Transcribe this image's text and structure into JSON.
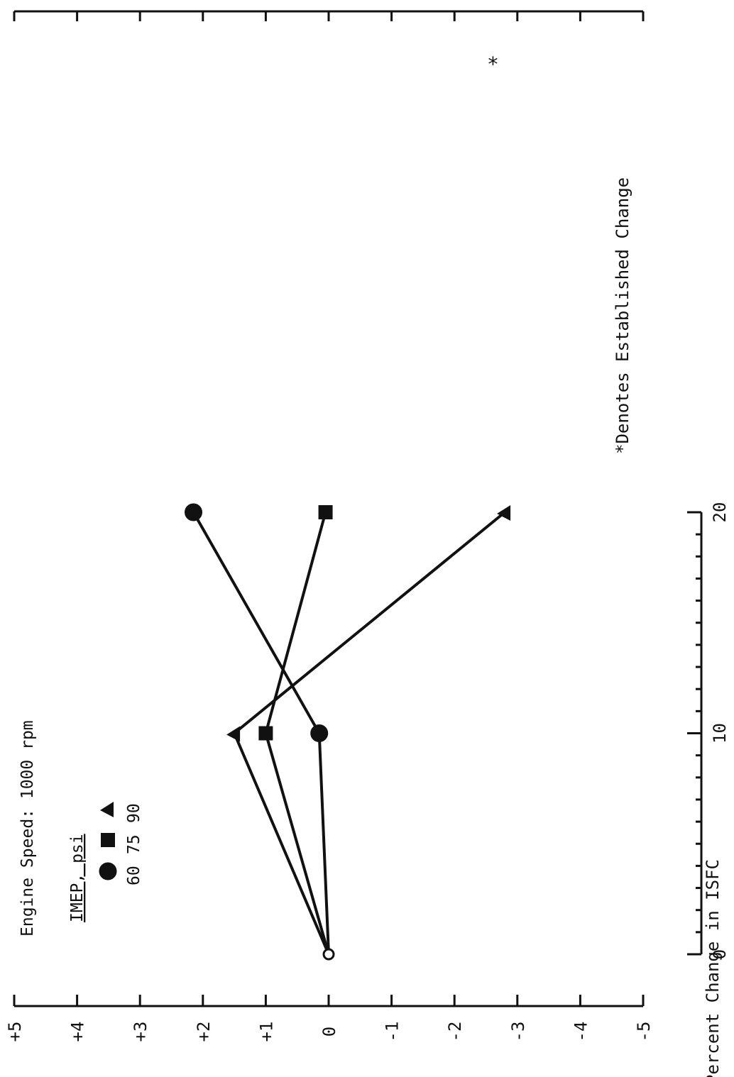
{
  "chart_data": {
    "type": "line",
    "ylabel": "Percent Change in ISFC",
    "y_tick_labels": [
      "+5",
      "+4",
      "+3",
      "+2",
      "+1",
      "0",
      "-1",
      "-2",
      "-3",
      "-4",
      "-5"
    ],
    "ylim": [
      -5,
      5
    ],
    "x_tick_labels": [
      "0",
      "10",
      "20"
    ],
    "xlim": [
      0,
      20
    ],
    "annotations": {
      "title": "Engine Speed: 1000 rpm",
      "legend_title": "IMEP, psi",
      "footnote": "*Denotes Established Change",
      "established_mark": "*"
    },
    "legend_placement": "top-left",
    "grid": false,
    "series": [
      {
        "name": "60",
        "marker": "circle",
        "x": [
          0,
          10,
          20
        ],
        "y": [
          0,
          0.15,
          2.15
        ]
      },
      {
        "name": "75",
        "marker": "square",
        "x": [
          0,
          10,
          20
        ],
        "y": [
          0,
          1.0,
          0.05
        ]
      },
      {
        "name": "90",
        "marker": "triangle",
        "x": [
          0,
          10,
          20
        ],
        "y": [
          0,
          1.5,
          -2.8
        ],
        "established": [
          false,
          false,
          true
        ]
      }
    ]
  }
}
